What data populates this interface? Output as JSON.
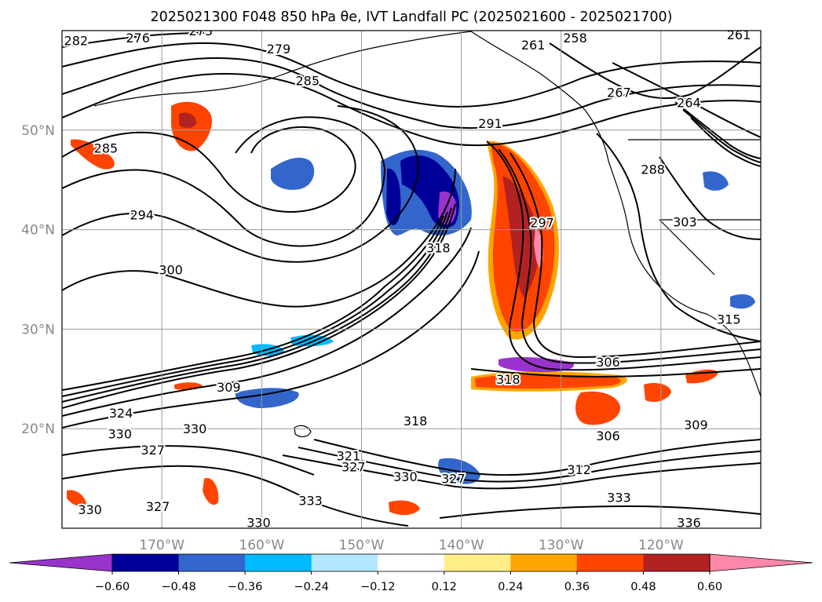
{
  "chart_data": {
    "type": "heatmap",
    "title": "2025021300 F048 850 hPa θe, IVT Landfall PC (2025021600 - 2025021700)",
    "map": {
      "lon_range": [
        -180,
        -110
      ],
      "lat_range": [
        10,
        60
      ],
      "lon_ticks": [
        {
          "value": -170,
          "label": "170°W"
        },
        {
          "value": -160,
          "label": "160°W"
        },
        {
          "value": -150,
          "label": "150°W"
        },
        {
          "value": -140,
          "label": "140°W"
        },
        {
          "value": -130,
          "label": "130°W"
        },
        {
          "value": -120,
          "label": "120°W"
        }
      ],
      "lat_ticks": [
        {
          "value": 50,
          "label": "50°N"
        },
        {
          "value": 40,
          "label": "40°N"
        },
        {
          "value": 30,
          "label": "30°N"
        },
        {
          "value": 20,
          "label": "20°N"
        }
      ],
      "grid": true
    },
    "colorbar": {
      "levels": [
        -0.6,
        -0.48,
        -0.36,
        -0.24,
        -0.12,
        0.12,
        0.24,
        0.36,
        0.48,
        0.6
      ],
      "tick_labels": [
        "−0.60",
        "−0.48",
        "−0.36",
        "−0.24",
        "−0.12",
        "0.12",
        "0.24",
        "0.36",
        "0.48",
        "0.60"
      ],
      "colors": [
        "#9933cc",
        "#000099",
        "#3366cc",
        "#00bbff",
        "#b3e6ff",
        "#ffffff",
        "#ffee88",
        "#ffa500",
        "#ff4400",
        "#b22222",
        "#ff88aa"
      ],
      "extend": "both",
      "orientation": "horizontal"
    },
    "contour_labels": [
      {
        "text": "282",
        "lon": -178.6,
        "lat": 59.0
      },
      {
        "text": "276",
        "lon": -172.4,
        "lat": 59.3
      },
      {
        "text": "273",
        "lon": -166.1,
        "lat": 60.0
      },
      {
        "text": "279",
        "lon": -158.3,
        "lat": 58.2
      },
      {
        "text": "285",
        "lon": -155.4,
        "lat": 55.0
      },
      {
        "text": "258",
        "lon": -128.6,
        "lat": 59.3
      },
      {
        "text": "261",
        "lon": -132.8,
        "lat": 58.6
      },
      {
        "text": "261",
        "lon": -112.2,
        "lat": 59.6
      },
      {
        "text": "267",
        "lon": -124.2,
        "lat": 53.8
      },
      {
        "text": "264",
        "lon": -117.2,
        "lat": 52.8
      },
      {
        "text": "291",
        "lon": -137.1,
        "lat": 50.7
      },
      {
        "text": "285",
        "lon": -175.6,
        "lat": 48.2
      },
      {
        "text": "288",
        "lon": -120.8,
        "lat": 46.1
      },
      {
        "text": "294",
        "lon": -172.0,
        "lat": 41.5
      },
      {
        "text": "300",
        "lon": -169.1,
        "lat": 36.0
      },
      {
        "text": "318",
        "lon": -142.3,
        "lat": 38.2
      },
      {
        "text": "297",
        "lon": -131.9,
        "lat": 40.7
      },
      {
        "text": "303",
        "lon": -117.6,
        "lat": 40.8
      },
      {
        "text": "315",
        "lon": -113.2,
        "lat": 31.0
      },
      {
        "text": "306",
        "lon": -125.3,
        "lat": 26.7
      },
      {
        "text": "318",
        "lon": -135.3,
        "lat": 25.0
      },
      {
        "text": "309",
        "lon": -163.3,
        "lat": 24.2
      },
      {
        "text": "324",
        "lon": -174.1,
        "lat": 21.6
      },
      {
        "text": "330",
        "lon": -174.2,
        "lat": 19.5
      },
      {
        "text": "330",
        "lon": -166.7,
        "lat": 20.0
      },
      {
        "text": "327",
        "lon": -170.9,
        "lat": 17.9
      },
      {
        "text": "318",
        "lon": -144.6,
        "lat": 20.8
      },
      {
        "text": "321",
        "lon": -151.3,
        "lat": 17.3
      },
      {
        "text": "327",
        "lon": -150.8,
        "lat": 16.2
      },
      {
        "text": "330",
        "lon": -145.6,
        "lat": 15.2
      },
      {
        "text": "327",
        "lon": -140.8,
        "lat": 15.0
      },
      {
        "text": "306",
        "lon": -125.3,
        "lat": 19.3
      },
      {
        "text": "309",
        "lon": -116.5,
        "lat": 20.4
      },
      {
        "text": "312",
        "lon": -128.2,
        "lat": 15.9
      },
      {
        "text": "333",
        "lon": -155.1,
        "lat": 12.8
      },
      {
        "text": "333",
        "lon": -124.2,
        "lat": 13.1
      },
      {
        "text": "336",
        "lon": -117.2,
        "lat": 10.6
      },
      {
        "text": "330",
        "lon": -177.2,
        "lat": 11.9
      },
      {
        "text": "327",
        "lon": -170.4,
        "lat": 12.2
      },
      {
        "text": "330",
        "lon": -160.3,
        "lat": 10.6
      }
    ]
  }
}
